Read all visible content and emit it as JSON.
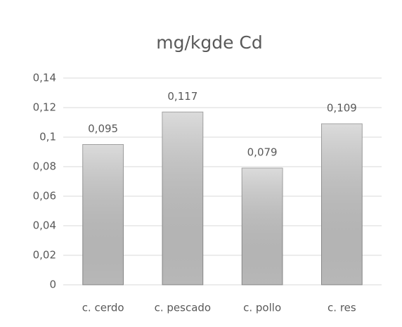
{
  "chart_data": {
    "type": "bar",
    "title": "mg/kgde Cd",
    "categories": [
      "c. cerdo",
      "c. pescado",
      "c. pollo",
      "c. res"
    ],
    "values": [
      0.095,
      0.117,
      0.079,
      0.109
    ],
    "value_labels": [
      "0,095",
      "0,117",
      "0,079",
      "0,109"
    ],
    "color": "#c8c8c8",
    "ylim": [
      0,
      0.14
    ],
    "yticks": [
      0,
      {
        "value": 0.02,
        "label": "0,02"
      },
      {
        "value": 0.04,
        "label": "0,04"
      },
      {
        "value": 0.06,
        "label": "0,06"
      },
      {
        "value": 0.08,
        "label": "0,08"
      },
      {
        "value": 0.1,
        "label": "0,1"
      },
      {
        "value": 0.12,
        "label": "0,12"
      },
      {
        "value": 0.14,
        "label": "0,14"
      }
    ],
    "grid": true
  }
}
